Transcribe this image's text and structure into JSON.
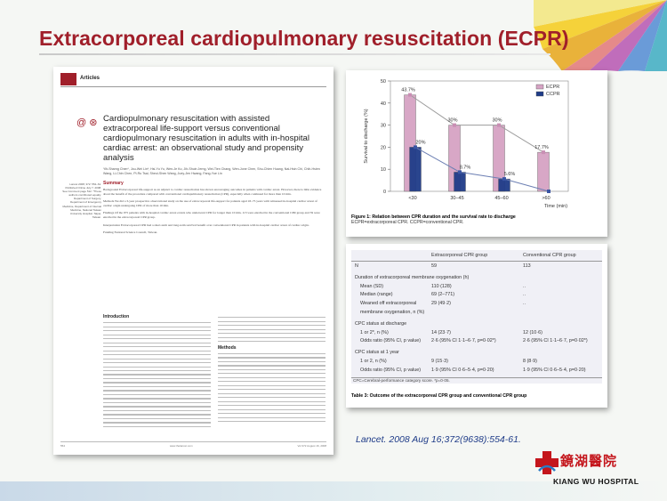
{
  "slide": {
    "title": "Extracorporeal cardiopulmonary resuscitation (ECPR)",
    "citation": "Lancet. 2008 Aug 16;372(9638):554-61.",
    "logo": {
      "chinese": "鏡湖醫院",
      "english": "KIANG WU HOSPITAL"
    }
  },
  "article": {
    "section": "Articles",
    "title": "Cardiopulmonary resuscitation with assisted extracorporeal life-support versus conventional cardiopulmonary resuscitation in adults with in-hospital cardiac arrest: an observational study and propensity analysis",
    "authors": "Yih-Sharng Chen*, Jou-Wei Lin*, Hsi-Yu Yu, Wen-Je Ko, Jih-Shuin Jerng, Wei-Tien Chang, Wen-Jone Chen, Shu-Chien Huang, Nai-Hsin Chi, Chih-Hsien Wang, Li-Chin Chen, Pi-Ru Tsai, Sheoi-Shen Wang, Juey-Jen Hwang, Fang-Yue Lin",
    "side_note": "Lancet 2008; 372: 554–61. Published Online July 7, 2008. See Comment page 512. *These authors contributed equally. Department of Surgery, Department of Emergency Medicine, Department of Internal Medicine, National Taiwan University Hospital, Taipei, Taiwan.",
    "summary_heading": "Summary",
    "background": "Background Extracorporeal life-support as an adjunct to cardiac resuscitation has shown encouraging outcomes in patients with cardiac arrest. However, there is little evidence about the benefit of the procedure compared with conventional cardiopulmonary resuscitation (CPR), especially when continued for more than 10 min.",
    "methods": "Methods We did a 3-year prospective observational study on the use of extracorporeal life-support for patients aged 18–75 years with witnessed in-hospital cardiac arrest of cardiac origin undergoing CPR of more than 10 min.",
    "findings": "Findings Of the 975 patients with in-hospital cardiac arrest events who underwent CPR for longer than 10 min, 113 were enrolled in the conventional CPR group and 59 were enrolled in the extracorporeal CPR group.",
    "interpretation": "Interpretation Extracorporeal CPR had a short-term and long-term survival benefit over conventional CPR in patients with in-hospital cardiac arrest of cardiac origin.",
    "funding": "Funding National Science Council, Taiwan.",
    "intro_heading": "Introduction",
    "methods_heading": "Methods",
    "footer_left": "554",
    "footer_mid": "www.thelancet.com",
    "footer_right": "Vol 372 August 16, 2008"
  },
  "figure": {
    "caption_bold": "Figure 1: Relation between CPR duration and the survival rate to discharge",
    "caption_rest": "ECPR=extracorporeal CPR. CCPR=conventional CPR."
  },
  "chart_data": {
    "type": "line",
    "categories": [
      "<30",
      "30–45",
      "45–60",
      ">60"
    ],
    "xlabel": "Time (min)",
    "ylabel": "Survival to discharge (%)",
    "ylim": [
      0,
      50
    ],
    "yticks": [
      "0",
      "10",
      "20",
      "30",
      "40",
      "50"
    ],
    "legend_position": "top-right",
    "series": [
      {
        "name": "ECPR",
        "color": "#d6a3c4",
        "values": [
          43.7,
          30,
          30,
          17.7
        ],
        "labels": [
          "43.7%",
          "30%",
          "30%",
          "17.7%"
        ]
      },
      {
        "name": "CCPR",
        "color": "#1f3c88",
        "values": [
          20,
          8.7,
          5.6,
          0
        ],
        "labels": [
          "20%",
          "8.7%",
          "5.6%",
          ""
        ]
      }
    ]
  },
  "table": {
    "headers": [
      "",
      "Extracorporeal CPR group",
      "Conventional CPR group"
    ],
    "rows": [
      {
        "label": "N",
        "indent": false,
        "a": "59",
        "b": "113"
      },
      {
        "label": "Duration of extracorporeal membrane oxygenation (h)",
        "indent": false,
        "a": "",
        "b": ""
      },
      {
        "label": "Mean (SD)",
        "indent": true,
        "a": "110 (128)",
        "b": ".."
      },
      {
        "label": "Median (range)",
        "indent": true,
        "a": "69 (2–771)",
        "b": ".."
      },
      {
        "label": "Weaned off extracorporeal",
        "indent": true,
        "a": "29 (49·2)",
        "b": ".."
      },
      {
        "label": "membrane oxygenation, n (%)",
        "indent": true,
        "a": "",
        "b": ""
      },
      {
        "label": "CPC status at discharge",
        "indent": false,
        "a": "",
        "b": ""
      },
      {
        "label": "1 or 2*, n (%)",
        "indent": true,
        "a": "14 (23·7)",
        "b": "12 (10·6)"
      },
      {
        "label": "Odds ratio (95% CI, p value)",
        "indent": true,
        "a": "2·6 (95% CI 1·1–6·7, p=0·02*)",
        "b": "2·6 (95% CI 1·1–6·7, p=0·02*)"
      },
      {
        "label": "CPC status at 1 year",
        "indent": false,
        "a": "",
        "b": ""
      },
      {
        "label": "1 or 2, n (%)",
        "indent": true,
        "a": "9 (15·3)",
        "b": "8 (8·9)"
      },
      {
        "label": "Odds ratio (95% CI, p value)",
        "indent": true,
        "a": "1·9 (95% CI 0·6–5·4, p=0·20)",
        "b": "1·9 (95% CI 0·6–5·4, p=0·20)"
      }
    ],
    "note": "CPC=Cerebral-performance category score. *p=0·05.",
    "caption_bold": "Table 3: Outcome of the extracorporeal CPR group and conventional CPR group"
  }
}
